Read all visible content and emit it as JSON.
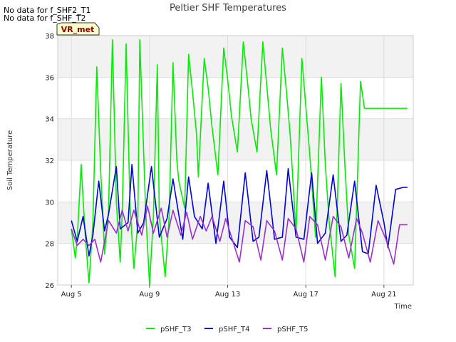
{
  "messages": [
    "No data for f_SHF2_T1",
    "No data for f_SHF_T2"
  ],
  "badge": "VR_met",
  "colors": {
    "band": "#f2f2f2",
    "badge_bg": "#ffffcc",
    "badge_border": "#333333",
    "badge_text": "#8b0000"
  },
  "chart_data": {
    "type": "line",
    "title": "Peltier SHF Temperatures",
    "xlabel": "Time",
    "ylabel": "Soil Temperature",
    "xlim": [
      4.3,
      22.5
    ],
    "ylim": [
      26,
      38
    ],
    "yticks": [
      26,
      28,
      30,
      32,
      34,
      36,
      38
    ],
    "xticks": [
      {
        "value": 5,
        "label": "Aug 5"
      },
      {
        "value": 9,
        "label": "Aug 9"
      },
      {
        "value": 13,
        "label": "Aug 13"
      },
      {
        "value": 17,
        "label": "Aug 17"
      },
      {
        "value": 21,
        "label": "Aug 21"
      }
    ],
    "grid": true,
    "legend_position": "bottom",
    "series": [
      {
        "name": "pSHF_T3",
        "color": "#00ee00",
        "x": [
          5.0,
          5.2,
          5.3,
          5.5,
          5.7,
          5.9,
          6.1,
          6.3,
          6.5,
          6.7,
          6.9,
          7.1,
          7.3,
          7.5,
          7.6,
          7.8,
          8.0,
          8.2,
          8.4,
          8.5,
          8.8,
          9.0,
          9.2,
          9.4,
          9.5,
          9.8,
          10.0,
          10.2,
          10.4,
          10.5,
          10.8,
          11.0,
          11.2,
          11.4,
          11.5,
          11.8,
          12.0,
          12.2,
          12.5,
          12.8,
          13.0,
          13.2,
          13.5,
          13.8,
          14.0,
          14.2,
          14.5,
          14.8,
          15.0,
          15.2,
          15.5,
          15.8,
          16.0,
          16.2,
          16.5,
          16.8,
          17.0,
          17.2,
          17.5,
          17.8,
          18.0,
          18.2,
          18.5,
          18.8,
          19.0,
          19.2,
          19.5,
          19.8,
          20.0,
          20.2,
          20.5,
          20.8,
          21.0,
          21.2,
          21.5,
          21.8,
          22.0,
          22.2
        ],
        "values": [
          28.7,
          27.3,
          28.2,
          31.8,
          28.5,
          26.1,
          29.0,
          36.5,
          31.5,
          27.5,
          29.5,
          37.8,
          30.0,
          27.1,
          29.4,
          37.6,
          29.9,
          26.8,
          29.0,
          37.8,
          29.6,
          26.0,
          29.3,
          36.6,
          29.3,
          26.4,
          29.2,
          36.7,
          32.0,
          31.0,
          29.7,
          37.1,
          35.3,
          33.3,
          31.2,
          36.9,
          35.5,
          33.6,
          31.3,
          37.4,
          35.9,
          34.1,
          32.4,
          37.7,
          35.9,
          34.0,
          32.4,
          37.7,
          35.6,
          33.5,
          31.3,
          37.4,
          35.4,
          33.2,
          28.5,
          36.9,
          34.6,
          32.3,
          28.3,
          36.0,
          31.8,
          29.0,
          26.4,
          35.7,
          31.8,
          28.4,
          26.8,
          35.8,
          34.5,
          34.5,
          34.5,
          34.5,
          34.5,
          34.5,
          34.5,
          34.5,
          34.5,
          34.5
        ]
      },
      {
        "name": "pSHF_T4",
        "color": "#0000dd",
        "x": [
          5.0,
          5.3,
          5.6,
          5.9,
          6.1,
          6.4,
          6.7,
          6.9,
          7.3,
          7.5,
          7.9,
          8.1,
          8.4,
          8.7,
          9.1,
          9.5,
          9.9,
          10.2,
          10.7,
          11.0,
          11.3,
          11.7,
          12.0,
          12.4,
          12.8,
          13.1,
          13.5,
          13.9,
          14.3,
          14.6,
          15.0,
          15.4,
          15.8,
          16.1,
          16.5,
          16.9,
          17.3,
          17.6,
          18.0,
          18.4,
          18.8,
          19.1,
          19.5,
          19.9,
          20.2,
          20.6,
          21.0,
          21.2,
          21.6,
          22.0,
          22.2
        ],
        "values": [
          29.1,
          28.1,
          29.3,
          27.4,
          28.4,
          31.0,
          28.6,
          29.4,
          31.7,
          28.7,
          29.0,
          31.8,
          28.5,
          29.0,
          31.7,
          28.3,
          29.2,
          31.1,
          28.2,
          31.2,
          29.3,
          28.7,
          30.9,
          28.0,
          31.0,
          28.3,
          27.8,
          31.4,
          28.1,
          28.3,
          31.5,
          28.2,
          28.3,
          31.6,
          28.3,
          28.2,
          31.4,
          28.0,
          28.5,
          31.3,
          28.1,
          28.4,
          31.0,
          27.6,
          27.5,
          30.8,
          29.0,
          27.8,
          30.6,
          30.7,
          30.7
        ]
      },
      {
        "name": "pSHF_T5",
        "color": "#9932cc",
        "x": [
          5.0,
          5.3,
          5.6,
          5.9,
          6.2,
          6.5,
          6.9,
          7.3,
          7.6,
          7.9,
          8.2,
          8.6,
          8.9,
          9.2,
          9.6,
          9.9,
          10.2,
          10.6,
          10.9,
          11.2,
          11.6,
          11.9,
          12.2,
          12.6,
          12.9,
          13.2,
          13.6,
          13.9,
          14.3,
          14.7,
          15.0,
          15.4,
          15.8,
          16.1,
          16.5,
          16.9,
          17.2,
          17.6,
          18.0,
          18.4,
          18.8,
          19.2,
          19.6,
          19.9,
          20.3,
          20.7,
          21.1,
          21.5,
          21.8,
          22.2
        ],
        "values": [
          28.7,
          27.9,
          28.2,
          27.9,
          28.2,
          27.1,
          29.1,
          28.5,
          29.6,
          28.6,
          29.6,
          28.4,
          29.8,
          28.5,
          29.7,
          28.3,
          29.6,
          28.4,
          29.5,
          28.2,
          29.3,
          28.6,
          29.3,
          28.1,
          29.2,
          28.3,
          27.1,
          29.1,
          28.8,
          27.2,
          29.1,
          28.6,
          27.2,
          29.2,
          28.7,
          27.1,
          29.3,
          28.9,
          27.2,
          29.3,
          28.8,
          27.3,
          29.2,
          28.5,
          27.1,
          29.1,
          28.2,
          27.0,
          28.9,
          28.9
        ]
      }
    ]
  }
}
